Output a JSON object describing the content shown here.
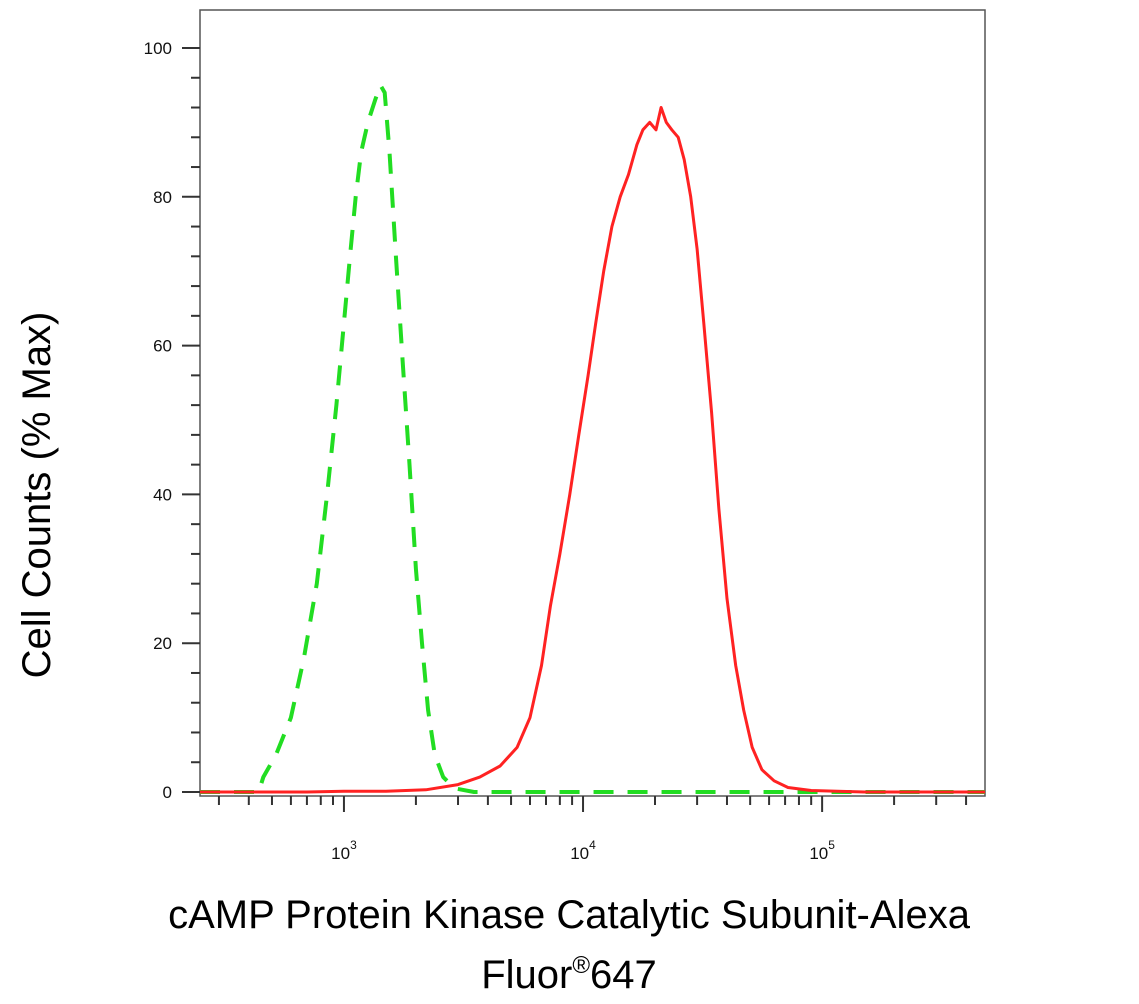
{
  "chart_data": {
    "type": "line",
    "xlabel": "cAMP Protein Kinase Catalytic Subunit-Alexa",
    "xlabel_line2_prefix": "Fluor",
    "xlabel_line2_mark": "®",
    "xlabel_line2_suffix": "647",
    "ylabel": "Cell Counts (% Max)",
    "x_scale": "log",
    "xlim": [
      250,
      480000
    ],
    "ylim": [
      0,
      100
    ],
    "x_ticks": [
      {
        "value": 1000,
        "base": "10",
        "exp": "3"
      },
      {
        "value": 10000,
        "base": "10",
        "exp": "4"
      },
      {
        "value": 100000,
        "base": "10",
        "exp": "5"
      }
    ],
    "y_ticks": [
      0,
      20,
      40,
      60,
      80,
      100
    ],
    "grid": false,
    "legend": "none",
    "series": [
      {
        "style": "dashed",
        "color": "#22dd22",
        "points": [
          [
            250,
            0
          ],
          [
            440,
            0
          ],
          [
            460,
            2
          ],
          [
            520,
            5
          ],
          [
            600,
            10
          ],
          [
            680,
            18
          ],
          [
            770,
            28
          ],
          [
            850,
            40
          ],
          [
            930,
            52
          ],
          [
            1000,
            63
          ],
          [
            1060,
            72
          ],
          [
            1120,
            80
          ],
          [
            1180,
            86
          ],
          [
            1260,
            90
          ],
          [
            1350,
            93
          ],
          [
            1420,
            95
          ],
          [
            1480,
            94
          ],
          [
            1550,
            86
          ],
          [
            1650,
            72
          ],
          [
            1760,
            58
          ],
          [
            1880,
            44
          ],
          [
            2000,
            30
          ],
          [
            2120,
            20
          ],
          [
            2250,
            11
          ],
          [
            2400,
            5
          ],
          [
            2600,
            2
          ],
          [
            2900,
            0.5
          ],
          [
            3500,
            0
          ],
          [
            480000,
            0
          ]
        ]
      },
      {
        "style": "solid",
        "color": "#ff2222",
        "points": [
          [
            250,
            0
          ],
          [
            700,
            0
          ],
          [
            1000,
            0.1
          ],
          [
            1500,
            0.1
          ],
          [
            2200,
            0.3
          ],
          [
            3000,
            1
          ],
          [
            3700,
            2
          ],
          [
            4500,
            3.5
          ],
          [
            5300,
            6
          ],
          [
            6000,
            10
          ],
          [
            6700,
            17
          ],
          [
            7300,
            25
          ],
          [
            8000,
            32
          ],
          [
            8800,
            40
          ],
          [
            9600,
            48
          ],
          [
            10500,
            56
          ],
          [
            11300,
            63
          ],
          [
            12200,
            70
          ],
          [
            13200,
            76
          ],
          [
            14300,
            80
          ],
          [
            15500,
            83
          ],
          [
            16800,
            87
          ],
          [
            17800,
            89
          ],
          [
            19000,
            90
          ],
          [
            20200,
            89
          ],
          [
            21200,
            92
          ],
          [
            22300,
            90
          ],
          [
            23500,
            89
          ],
          [
            25000,
            88
          ],
          [
            26500,
            85
          ],
          [
            28200,
            80
          ],
          [
            30000,
            73
          ],
          [
            32000,
            63
          ],
          [
            34500,
            51
          ],
          [
            37000,
            38
          ],
          [
            40000,
            26
          ],
          [
            43500,
            17
          ],
          [
            47000,
            11
          ],
          [
            51000,
            6
          ],
          [
            56000,
            3
          ],
          [
            63000,
            1.5
          ],
          [
            72000,
            0.6
          ],
          [
            90000,
            0.2
          ],
          [
            150000,
            0
          ],
          [
            480000,
            0
          ]
        ]
      }
    ]
  }
}
